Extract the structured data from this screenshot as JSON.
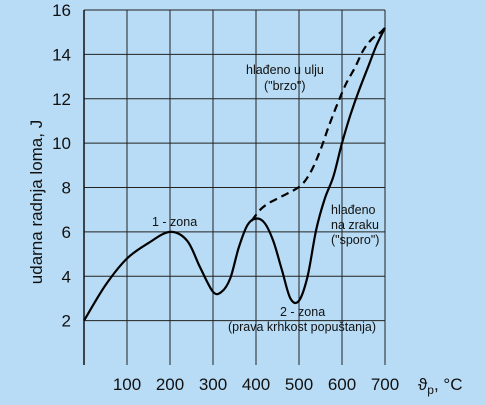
{
  "chart_data": {
    "type": "line",
    "ylabel": "udarna radnja loma, J",
    "xlabel": "ϑp, °C",
    "xlabel_main": "ϑ",
    "xlabel_sub": "p",
    "xlabel_unit": ", °C",
    "xlim": [
      0,
      700
    ],
    "ylim": [
      0,
      16
    ],
    "x_ticks": [
      100,
      200,
      300,
      400,
      500,
      600,
      700
    ],
    "y_ticks": [
      2,
      4,
      6,
      8,
      10,
      12,
      14,
      16
    ],
    "grid": true,
    "series": [
      {
        "name": "hlađeno na zraku (\"sporo\")",
        "style": "solid",
        "x": [
          0,
          50,
          100,
          150,
          200,
          240,
          270,
          300,
          320,
          340,
          360,
          380,
          400,
          420,
          440,
          460,
          480,
          500,
          520,
          540,
          560,
          580,
          600,
          620,
          640,
          660,
          680,
          700
        ],
        "y": [
          2.0,
          3.6,
          4.8,
          5.5,
          6.0,
          5.6,
          4.4,
          3.3,
          3.3,
          3.9,
          5.3,
          6.3,
          6.6,
          6.4,
          5.6,
          4.3,
          3.0,
          2.9,
          4.0,
          6.1,
          7.5,
          8.5,
          10.0,
          11.3,
          12.4,
          13.4,
          14.4,
          15.2
        ]
      },
      {
        "name": "hlađeno u ulju (\"brzo\")",
        "style": "dashed",
        "x": [
          390,
          410,
          430,
          450,
          470,
          490,
          510,
          530,
          550,
          570,
          590,
          610,
          630,
          650,
          670,
          690,
          700
        ],
        "y": [
          6.5,
          7.0,
          7.3,
          7.5,
          7.7,
          7.9,
          8.2,
          8.8,
          9.7,
          10.8,
          11.8,
          12.7,
          13.4,
          14.2,
          14.7,
          15.0,
          15.2
        ]
      }
    ],
    "annotations": {
      "zone1": "1 - zona",
      "oil_line1": "hlađeno u ulju",
      "oil_line2": "(\"brzo\")",
      "air_line1": "hlađeno",
      "air_line2": "na zraku",
      "air_line3": "(\"sporo\")",
      "zone2": "2 - zona",
      "zone2_note": "(prava krhkost popuštanja)"
    }
  }
}
